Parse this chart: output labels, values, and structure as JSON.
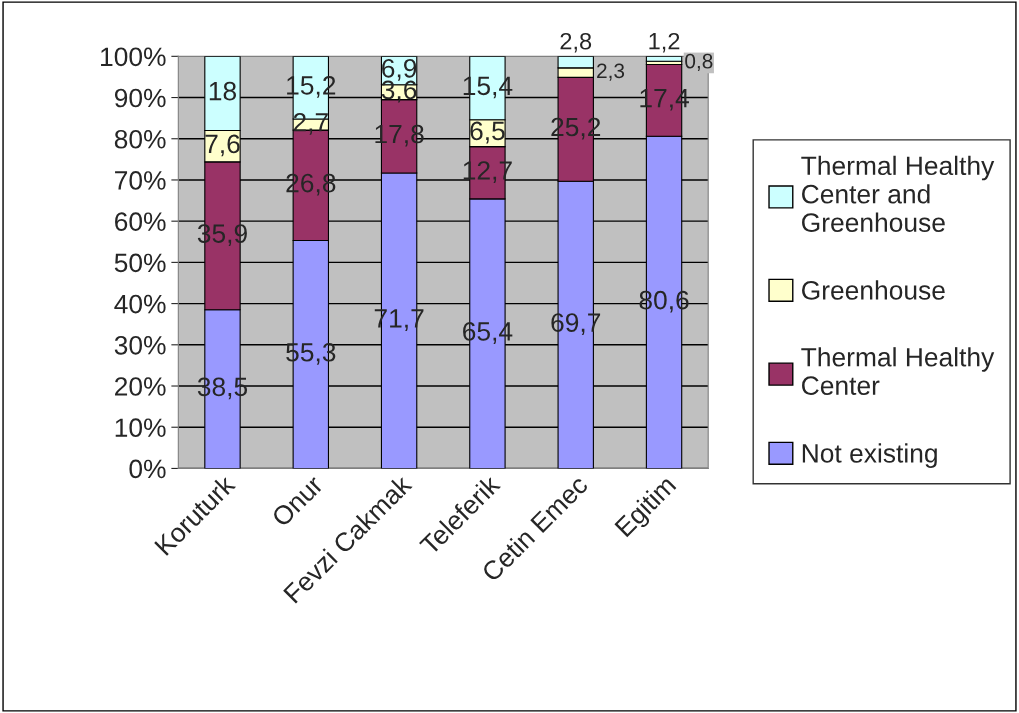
{
  "chart_data": {
    "type": "bar",
    "stacked": true,
    "categories": [
      "Koruturk",
      "Onur",
      "Fevzi Cakmak",
      "Teleferik",
      "Cetin Emec",
      "Egitim"
    ],
    "series": [
      {
        "name": "Not existing",
        "color": "#9999ff",
        "values": [
          38.5,
          55.3,
          71.7,
          65.4,
          69.7,
          80.6
        ],
        "value_labels": [
          "38,5",
          "55,3",
          "71,7",
          "65,4",
          "69,7",
          "80,6"
        ]
      },
      {
        "name": "Thermal Healthy Center",
        "color": "#993366",
        "values": [
          35.9,
          26.8,
          17.8,
          12.7,
          25.2,
          17.4
        ],
        "value_labels": [
          "35,9",
          "26,8",
          "17,8",
          "12,7",
          "25,2",
          "17,4"
        ]
      },
      {
        "name": "Greenhouse",
        "color": "#ffffcc",
        "values": [
          7.6,
          2.7,
          3.6,
          6.5,
          2.3,
          0.8
        ],
        "value_labels": [
          "7,6",
          "2,7",
          "3,6",
          "6,5",
          "2,3",
          "0,8"
        ]
      },
      {
        "name": "Thermal Healthy Center and Greenhouse",
        "color": "#ccffff",
        "values": [
          18,
          15.2,
          6.9,
          15.4,
          2.8,
          1.2
        ],
        "value_labels": [
          "18",
          "15,2",
          "6,9",
          "15,4",
          "2,8",
          "1,2"
        ]
      }
    ],
    "ylim": [
      0,
      100
    ],
    "yticks": [
      {
        "value": 0,
        "label": "0%"
      },
      {
        "value": 10,
        "label": "10%"
      },
      {
        "value": 20,
        "label": "20%"
      },
      {
        "value": 30,
        "label": "30%"
      },
      {
        "value": 40,
        "label": "40%"
      },
      {
        "value": 50,
        "label": "50%"
      },
      {
        "value": 60,
        "label": "60%"
      },
      {
        "value": 70,
        "label": "70%"
      },
      {
        "value": 80,
        "label": "80%"
      },
      {
        "value": 90,
        "label": "90%"
      },
      {
        "value": 100,
        "label": "100%"
      }
    ],
    "grid": "y",
    "legend": "right"
  }
}
